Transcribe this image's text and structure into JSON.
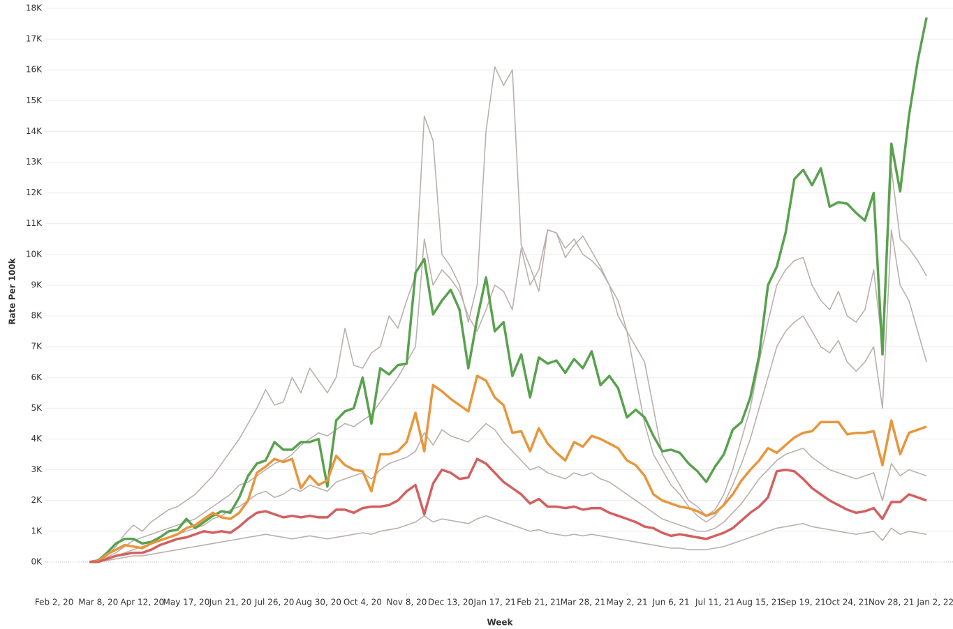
{
  "chart_data": {
    "type": "line",
    "xlabel": "Week",
    "ylabel": "Rate Per 100k",
    "grid": true,
    "xlim": [
      "2020-01-26",
      "2022-01-16"
    ],
    "ylim": [
      -1000,
      18000
    ],
    "xticks": [
      {
        "value": "2020-02-02",
        "label": "Feb 2, 20"
      },
      {
        "value": "2020-03-08",
        "label": "Mar 8, 20"
      },
      {
        "value": "2020-04-12",
        "label": "Apr 12, 20"
      },
      {
        "value": "2020-05-17",
        "label": "May 17, 20"
      },
      {
        "value": "2020-06-21",
        "label": "Jun 21, 20"
      },
      {
        "value": "2020-07-26",
        "label": "Jul 26, 20"
      },
      {
        "value": "2020-08-30",
        "label": "Aug 30, 20"
      },
      {
        "value": "2020-10-04",
        "label": "Oct 4, 20"
      },
      {
        "value": "2020-11-08",
        "label": "Nov 8, 20"
      },
      {
        "value": "2020-12-13",
        "label": "Dec 13, 20"
      },
      {
        "value": "2021-01-17",
        "label": "Jan 17, 21"
      },
      {
        "value": "2021-02-21",
        "label": "Feb 21, 21"
      },
      {
        "value": "2021-03-28",
        "label": "Mar 28, 21"
      },
      {
        "value": "2021-05-02",
        "label": "May 2, 21"
      },
      {
        "value": "2021-06-06",
        "label": "Jun 6, 21"
      },
      {
        "value": "2021-07-11",
        "label": "Jul 11, 21"
      },
      {
        "value": "2021-08-15",
        "label": "Aug 15, 21"
      },
      {
        "value": "2021-09-19",
        "label": "Sep 19, 21"
      },
      {
        "value": "2021-10-24",
        "label": "Oct 24, 21"
      },
      {
        "value": "2021-11-28",
        "label": "Nov 28, 21"
      },
      {
        "value": "2022-01-02",
        "label": "Jan 2, 22"
      }
    ],
    "yticks": [
      {
        "value": 0,
        "label": "0K"
      },
      {
        "value": 1000,
        "label": "1K"
      },
      {
        "value": 2000,
        "label": "2K"
      },
      {
        "value": 3000,
        "label": "3K"
      },
      {
        "value": 4000,
        "label": "4K"
      },
      {
        "value": 5000,
        "label": "5K"
      },
      {
        "value": 6000,
        "label": "6K"
      },
      {
        "value": 7000,
        "label": "7K"
      },
      {
        "value": 8000,
        "label": "8K"
      },
      {
        "value": 9000,
        "label": "9K"
      },
      {
        "value": 10000,
        "label": "10K"
      },
      {
        "value": 11000,
        "label": "11K"
      },
      {
        "value": 12000,
        "label": "12K"
      },
      {
        "value": 13000,
        "label": "13K"
      },
      {
        "value": 14000,
        "label": "14K"
      },
      {
        "value": 15000,
        "label": "15K"
      },
      {
        "value": 16000,
        "label": "16K"
      },
      {
        "value": 17000,
        "label": "17K"
      },
      {
        "value": 18000,
        "label": "18K"
      }
    ],
    "x": [
      "2020-03-01",
      "2020-03-08",
      "2020-03-15",
      "2020-03-22",
      "2020-03-29",
      "2020-04-05",
      "2020-04-12",
      "2020-04-19",
      "2020-04-26",
      "2020-05-03",
      "2020-05-10",
      "2020-05-17",
      "2020-05-24",
      "2020-05-31",
      "2020-06-07",
      "2020-06-14",
      "2020-06-21",
      "2020-06-28",
      "2020-07-05",
      "2020-07-12",
      "2020-07-19",
      "2020-07-26",
      "2020-08-02",
      "2020-08-09",
      "2020-08-16",
      "2020-08-23",
      "2020-08-30",
      "2020-09-06",
      "2020-09-13",
      "2020-09-20",
      "2020-09-27",
      "2020-10-04",
      "2020-10-11",
      "2020-10-18",
      "2020-10-25",
      "2020-11-01",
      "2020-11-08",
      "2020-11-15",
      "2020-11-22",
      "2020-11-29",
      "2020-12-06",
      "2020-12-13",
      "2020-12-20",
      "2020-12-27",
      "2021-01-03",
      "2021-01-10",
      "2021-01-17",
      "2021-01-24",
      "2021-01-31",
      "2021-02-07",
      "2021-02-14",
      "2021-02-21",
      "2021-02-28",
      "2021-03-07",
      "2021-03-14",
      "2021-03-21",
      "2021-03-28",
      "2021-04-04",
      "2021-04-11",
      "2021-04-18",
      "2021-04-25",
      "2021-05-02",
      "2021-05-09",
      "2021-05-16",
      "2021-05-23",
      "2021-05-30",
      "2021-06-06",
      "2021-06-13",
      "2021-06-20",
      "2021-06-27",
      "2021-07-04",
      "2021-07-11",
      "2021-07-18",
      "2021-07-25",
      "2021-08-01",
      "2021-08-08",
      "2021-08-15",
      "2021-08-22",
      "2021-08-29",
      "2021-09-05",
      "2021-09-12",
      "2021-09-19",
      "2021-09-26",
      "2021-10-03",
      "2021-10-10",
      "2021-10-17",
      "2021-10-24",
      "2021-10-31",
      "2021-11-07",
      "2021-11-14",
      "2021-11-21",
      "2021-11-28",
      "2021-12-05",
      "2021-12-12",
      "2021-12-19",
      "2021-12-26"
    ],
    "series": [
      {
        "color": "#bab0ac",
        "values": [
          0,
          0,
          200,
          500,
          900,
          1200,
          1000,
          1300,
          1500,
          1700,
          1800,
          2000,
          2200,
          2500,
          2800,
          3200,
          3600,
          4000,
          4500,
          5000,
          5600,
          5100,
          5200,
          6000,
          5500,
          6300,
          5900,
          5500,
          6000,
          7600,
          6400,
          6300,
          6800,
          7000,
          8000,
          7600,
          8500,
          9300,
          14500,
          13700,
          10000,
          9600,
          9000,
          7800,
          9000,
          14000,
          16100,
          15500,
          16000,
          10300,
          9600,
          8800,
          10800,
          10700,
          9900,
          10300,
          10600,
          10100,
          9600,
          9000,
          8000,
          7500,
          7000,
          6500,
          5000,
          3500,
          3000,
          2500,
          2000,
          1800,
          1500,
          1700,
          2200,
          3000,
          4000,
          5000,
          6500,
          7800,
          9000,
          9500,
          9800,
          9900,
          9000,
          8500,
          8200,
          8800,
          8000,
          7800,
          8200,
          9500,
          7000,
          12800,
          10500,
          10200,
          9800,
          9300
        ]
      },
      {
        "color": "#bab0ac",
        "values": [
          0,
          0,
          150,
          300,
          500,
          700,
          800,
          900,
          1000,
          1100,
          1200,
          1300,
          1400,
          1600,
          1800,
          2000,
          2200,
          2500,
          2600,
          2800,
          3000,
          3200,
          3300,
          3500,
          3800,
          4000,
          4200,
          4100,
          4300,
          4500,
          4400,
          4600,
          4800,
          5200,
          5600,
          6000,
          6500,
          7000,
          10500,
          9000,
          9500,
          9200,
          8800,
          8000,
          7500,
          8200,
          9000,
          8800,
          8200,
          10200,
          9000,
          9500,
          10800,
          10700,
          10200,
          10500,
          10000,
          9800,
          9500,
          9000,
          8500,
          7500,
          6000,
          4500,
          3500,
          3000,
          2500,
          2200,
          1800,
          1500,
          1300,
          1500,
          1900,
          2500,
          3200,
          4000,
          5000,
          6000,
          7000,
          7500,
          7800,
          8000,
          7500,
          7000,
          6800,
          7200,
          6500,
          6200,
          6500,
          7000,
          5000,
          10800,
          9000,
          8500,
          7500,
          6500
        ]
      },
      {
        "color": "#bab0ac",
        "values": [
          0,
          0,
          100,
          200,
          300,
          400,
          500,
          600,
          700,
          800,
          900,
          1000,
          1100,
          1200,
          1400,
          1500,
          1700,
          1800,
          2000,
          2200,
          2300,
          2100,
          2200,
          2400,
          2300,
          2500,
          2400,
          2300,
          2600,
          2700,
          2800,
          2900,
          2700,
          3000,
          3200,
          3300,
          3400,
          3600,
          4200,
          3800,
          4300,
          4100,
          4000,
          3900,
          4200,
          4500,
          4300,
          3900,
          3600,
          3300,
          3000,
          3100,
          2900,
          2800,
          2700,
          2900,
          2800,
          2900,
          2700,
          2600,
          2400,
          2200,
          2000,
          1800,
          1600,
          1400,
          1300,
          1200,
          1100,
          1000,
          1000,
          1100,
          1300,
          1600,
          1900,
          2300,
          2700,
          3000,
          3300,
          3500,
          3600,
          3700,
          3400,
          3200,
          3000,
          2900,
          2800,
          2700,
          2800,
          2900,
          2000,
          3200,
          2800,
          3000,
          2900,
          2800
        ]
      },
      {
        "color": "#bab0ac",
        "values": [
          0,
          0,
          50,
          100,
          150,
          200,
          200,
          250,
          300,
          350,
          400,
          450,
          500,
          550,
          600,
          650,
          700,
          750,
          800,
          850,
          900,
          850,
          800,
          750,
          800,
          850,
          800,
          750,
          800,
          850,
          900,
          950,
          900,
          1000,
          1050,
          1100,
          1200,
          1300,
          1500,
          1300,
          1400,
          1350,
          1300,
          1250,
          1400,
          1500,
          1400,
          1300,
          1200,
          1100,
          1000,
          1050,
          950,
          900,
          850,
          900,
          850,
          900,
          850,
          800,
          750,
          700,
          650,
          600,
          550,
          500,
          450,
          450,
          400,
          400,
          400,
          450,
          500,
          600,
          700,
          800,
          900,
          1000,
          1100,
          1150,
          1200,
          1250,
          1150,
          1100,
          1050,
          1000,
          950,
          900,
          950,
          1000,
          700,
          1100,
          900,
          1000,
          950,
          900
        ]
      },
      {
        "color": "#59a14f",
        "values": [
          0,
          50,
          300,
          600,
          750,
          750,
          600,
          650,
          800,
          1000,
          1050,
          1400,
          1100,
          1300,
          1500,
          1650,
          1600,
          2100,
          2800,
          3200,
          3300,
          3900,
          3650,
          3650,
          3900,
          3900,
          4000,
          2450,
          4600,
          4900,
          5000,
          6000,
          4500,
          6300,
          6100,
          6400,
          6450,
          9400,
          9850,
          8050,
          8500,
          8850,
          8200,
          6300,
          7900,
          9250,
          7500,
          7800,
          6050,
          6750,
          5350,
          6650,
          6450,
          6550,
          6150,
          6600,
          6300,
          6850,
          5750,
          6050,
          5650,
          4700,
          4950,
          4700,
          4100,
          3600,
          3650,
          3550,
          3200,
          2950,
          2600,
          3100,
          3500,
          4300,
          4550,
          5350,
          6700,
          9000,
          9600,
          10700,
          12450,
          12750,
          12250,
          12800,
          11550,
          11700,
          11650,
          11350,
          11100,
          12000,
          6750,
          13600,
          12050,
          14500,
          16300,
          17700
        ]
      },
      {
        "color": "#e8963c",
        "values": [
          0,
          30,
          250,
          400,
          550,
          500,
          450,
          600,
          700,
          800,
          900,
          1100,
          1200,
          1400,
          1600,
          1450,
          1400,
          1600,
          2000,
          2900,
          3100,
          3350,
          3250,
          3350,
          2400,
          2800,
          2500,
          2650,
          3450,
          3150,
          3000,
          2950,
          2300,
          3500,
          3500,
          3600,
          3900,
          4850,
          3600,
          5750,
          5550,
          5300,
          5100,
          4900,
          6050,
          5900,
          5350,
          5100,
          4200,
          4250,
          3600,
          4350,
          3850,
          3550,
          3300,
          3900,
          3750,
          4100,
          4000,
          3850,
          3700,
          3300,
          3150,
          2800,
          2200,
          2000,
          1900,
          1800,
          1750,
          1650,
          1500,
          1600,
          1850,
          2200,
          2650,
          3000,
          3300,
          3700,
          3550,
          3800,
          4050,
          4200,
          4250,
          4550,
          4550,
          4550,
          4150,
          4200,
          4200,
          4250,
          3150,
          4600,
          3500,
          4200,
          4300,
          4400
        ]
      },
      {
        "color": "#d45f5f",
        "values": [
          0,
          0,
          100,
          200,
          250,
          300,
          300,
          400,
          550,
          650,
          750,
          800,
          900,
          1000,
          950,
          1000,
          950,
          1150,
          1400,
          1600,
          1650,
          1550,
          1450,
          1500,
          1450,
          1500,
          1450,
          1450,
          1700,
          1700,
          1600,
          1750,
          1800,
          1800,
          1850,
          2000,
          2300,
          2500,
          1550,
          2550,
          3000,
          2900,
          2700,
          2750,
          3350,
          3200,
          2900,
          2600,
          2400,
          2200,
          1900,
          2050,
          1800,
          1800,
          1750,
          1800,
          1700,
          1750,
          1750,
          1600,
          1500,
          1400,
          1300,
          1150,
          1100,
          950,
          850,
          900,
          850,
          800,
          750,
          850,
          950,
          1100,
          1350,
          1600,
          1800,
          2100,
          2950,
          3000,
          2950,
          2700,
          2400,
          2200,
          2000,
          1850,
          1700,
          1600,
          1650,
          1750,
          1400,
          1950,
          1950,
          2200,
          2100,
          2000
        ]
      }
    ]
  }
}
